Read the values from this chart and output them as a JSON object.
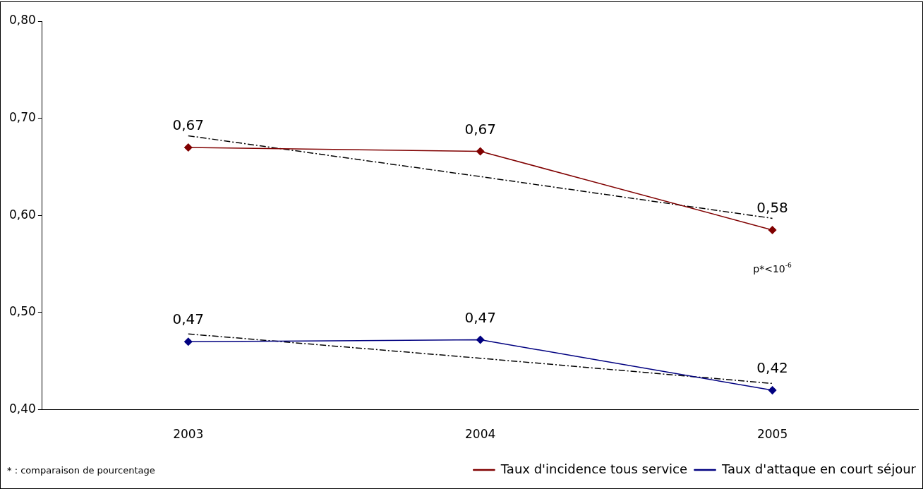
{
  "chart_data": {
    "type": "line",
    "categories": [
      "2003",
      "2004",
      "2005"
    ],
    "ylim": [
      0.4,
      0.8
    ],
    "yticks": [
      {
        "value": 0.4,
        "label": "0,40"
      },
      {
        "value": 0.5,
        "label": "0,50"
      },
      {
        "value": 0.6,
        "label": "0,60"
      },
      {
        "value": 0.7,
        "label": "0,70"
      },
      {
        "value": 0.8,
        "label": "0,80"
      }
    ],
    "grid": false,
    "legend": "bottom right",
    "marker": "diamond",
    "series": [
      {
        "name": "Taux d'incidence tous service",
        "color": "#800000",
        "values": [
          0.67,
          0.666,
          0.585
        ],
        "value_labels": [
          "0,67",
          "0,67",
          "0,58"
        ]
      },
      {
        "name": "Taux d'attaque en court séjour",
        "color": "#000080",
        "values": [
          0.47,
          0.472,
          0.42
        ],
        "value_labels": [
          "0,47",
          "0,47",
          "0,42"
        ]
      },
      {
        "type": "line",
        "color": "#000000",
        "line_style": "dashed",
        "marker": "none",
        "values": [
          0.682,
          0.64,
          0.597
        ]
      },
      {
        "type": "line",
        "color": "#000000",
        "line_style": "dashed",
        "marker": "none",
        "values": [
          0.478,
          0.453,
          0.427
        ]
      }
    ],
    "annotations": [
      "p*<10$^{-6}$",
      "* : comparaison de pourcentage"
    ]
  }
}
